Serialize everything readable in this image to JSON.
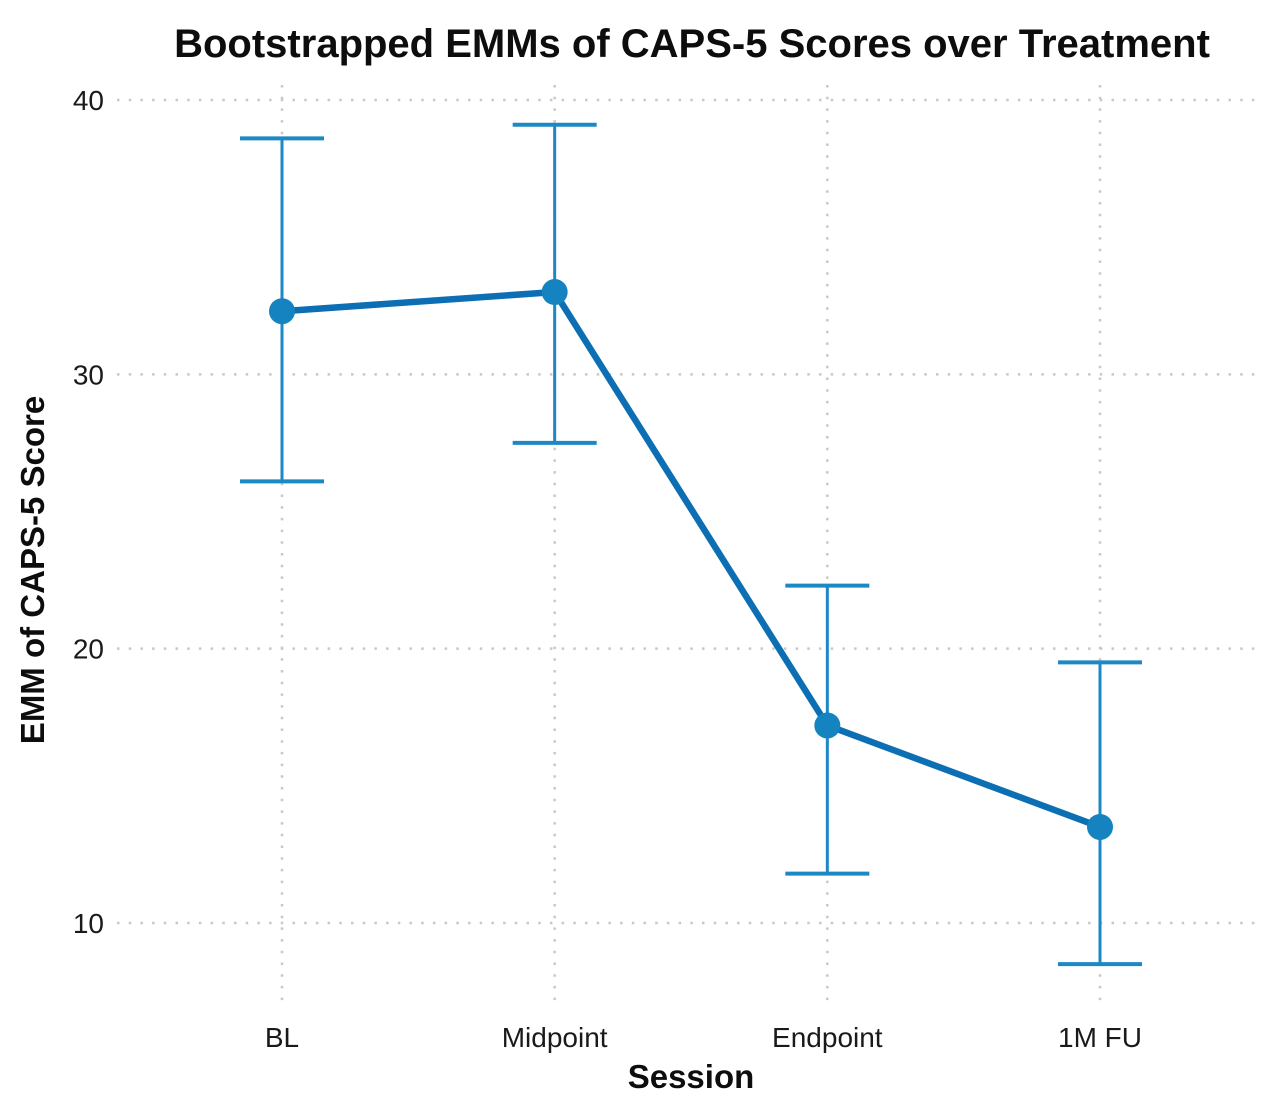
{
  "chart_data": {
    "type": "line",
    "title": "Bootstrapped EMMs of CAPS-5 Scores over Treatment",
    "xlabel": "Session",
    "ylabel": "EMM of CAPS-5 Score",
    "categories": [
      "BL",
      "Midpoint",
      "Endpoint",
      "1M FU"
    ],
    "series": [
      {
        "name": "EMM of CAPS-5 Score",
        "values": [
          32.3,
          33.0,
          17.2,
          13.5
        ],
        "ci_lower": [
          26.1,
          27.5,
          11.8,
          8.5
        ],
        "ci_upper": [
          38.6,
          39.1,
          22.3,
          19.5
        ]
      }
    ],
    "y_ticks": [
      10,
      20,
      30,
      40
    ],
    "ylim": [
      7.0,
      40.5
    ],
    "grid": "dotted",
    "legend_position": "none",
    "colors": {
      "line": "#0c6fb3",
      "marker": "#1483c0",
      "errorbar": "#1e88c4",
      "grid": "#c8c8c8",
      "text": "#1a1a1a"
    }
  }
}
